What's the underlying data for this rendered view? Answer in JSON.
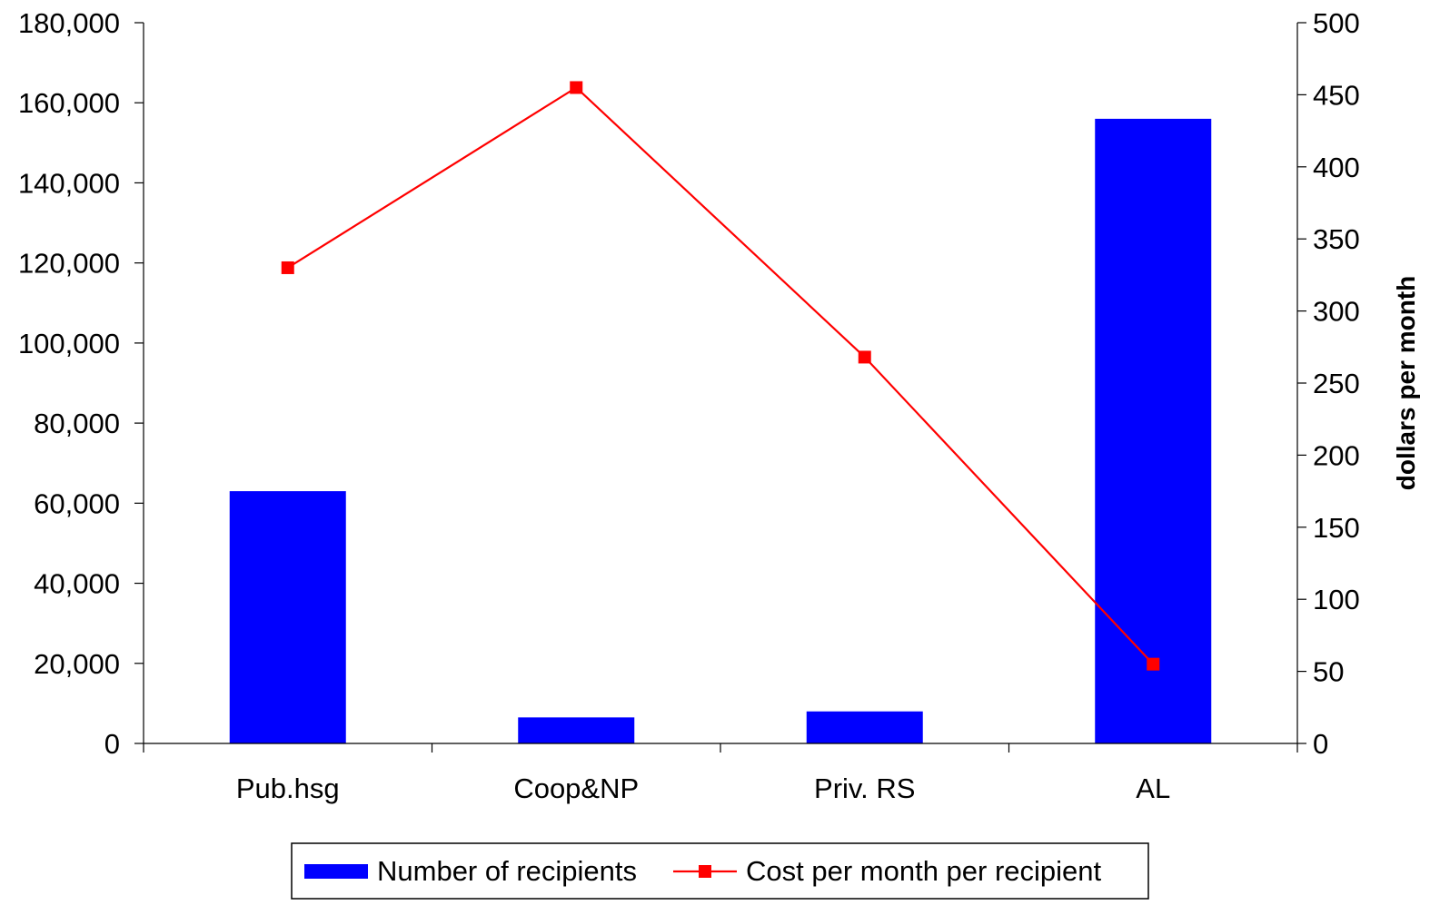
{
  "chart_data": {
    "type": "bar",
    "categories": [
      "Pub.hsg",
      "Coop&NP",
      "Priv. RS",
      "AL"
    ],
    "series": [
      {
        "name": "Number of recipients",
        "type": "bar",
        "axis": "left",
        "values": [
          63000,
          6500,
          8000,
          156000
        ]
      },
      {
        "name": "Cost per month per recipient",
        "type": "line",
        "axis": "right",
        "values": [
          330,
          455,
          268,
          55
        ]
      }
    ],
    "y_left": {
      "label": "",
      "range": [
        0,
        180000
      ],
      "ticks": [
        "180,000",
        "160,000",
        "140,000",
        "120,000",
        "100,000",
        "80,000",
        "60,000",
        "40,000",
        "20,000",
        "0"
      ]
    },
    "y_right": {
      "label": "dollars per month",
      "range": [
        0,
        500
      ],
      "ticks": [
        "500",
        "450",
        "400",
        "350",
        "300",
        "250",
        "200",
        "150",
        "100",
        "50",
        "0"
      ]
    },
    "grid": false,
    "legend": "bottom",
    "colors": {
      "bar": "#0000ff",
      "line": "#ff0000",
      "marker": "#ff0000"
    }
  }
}
